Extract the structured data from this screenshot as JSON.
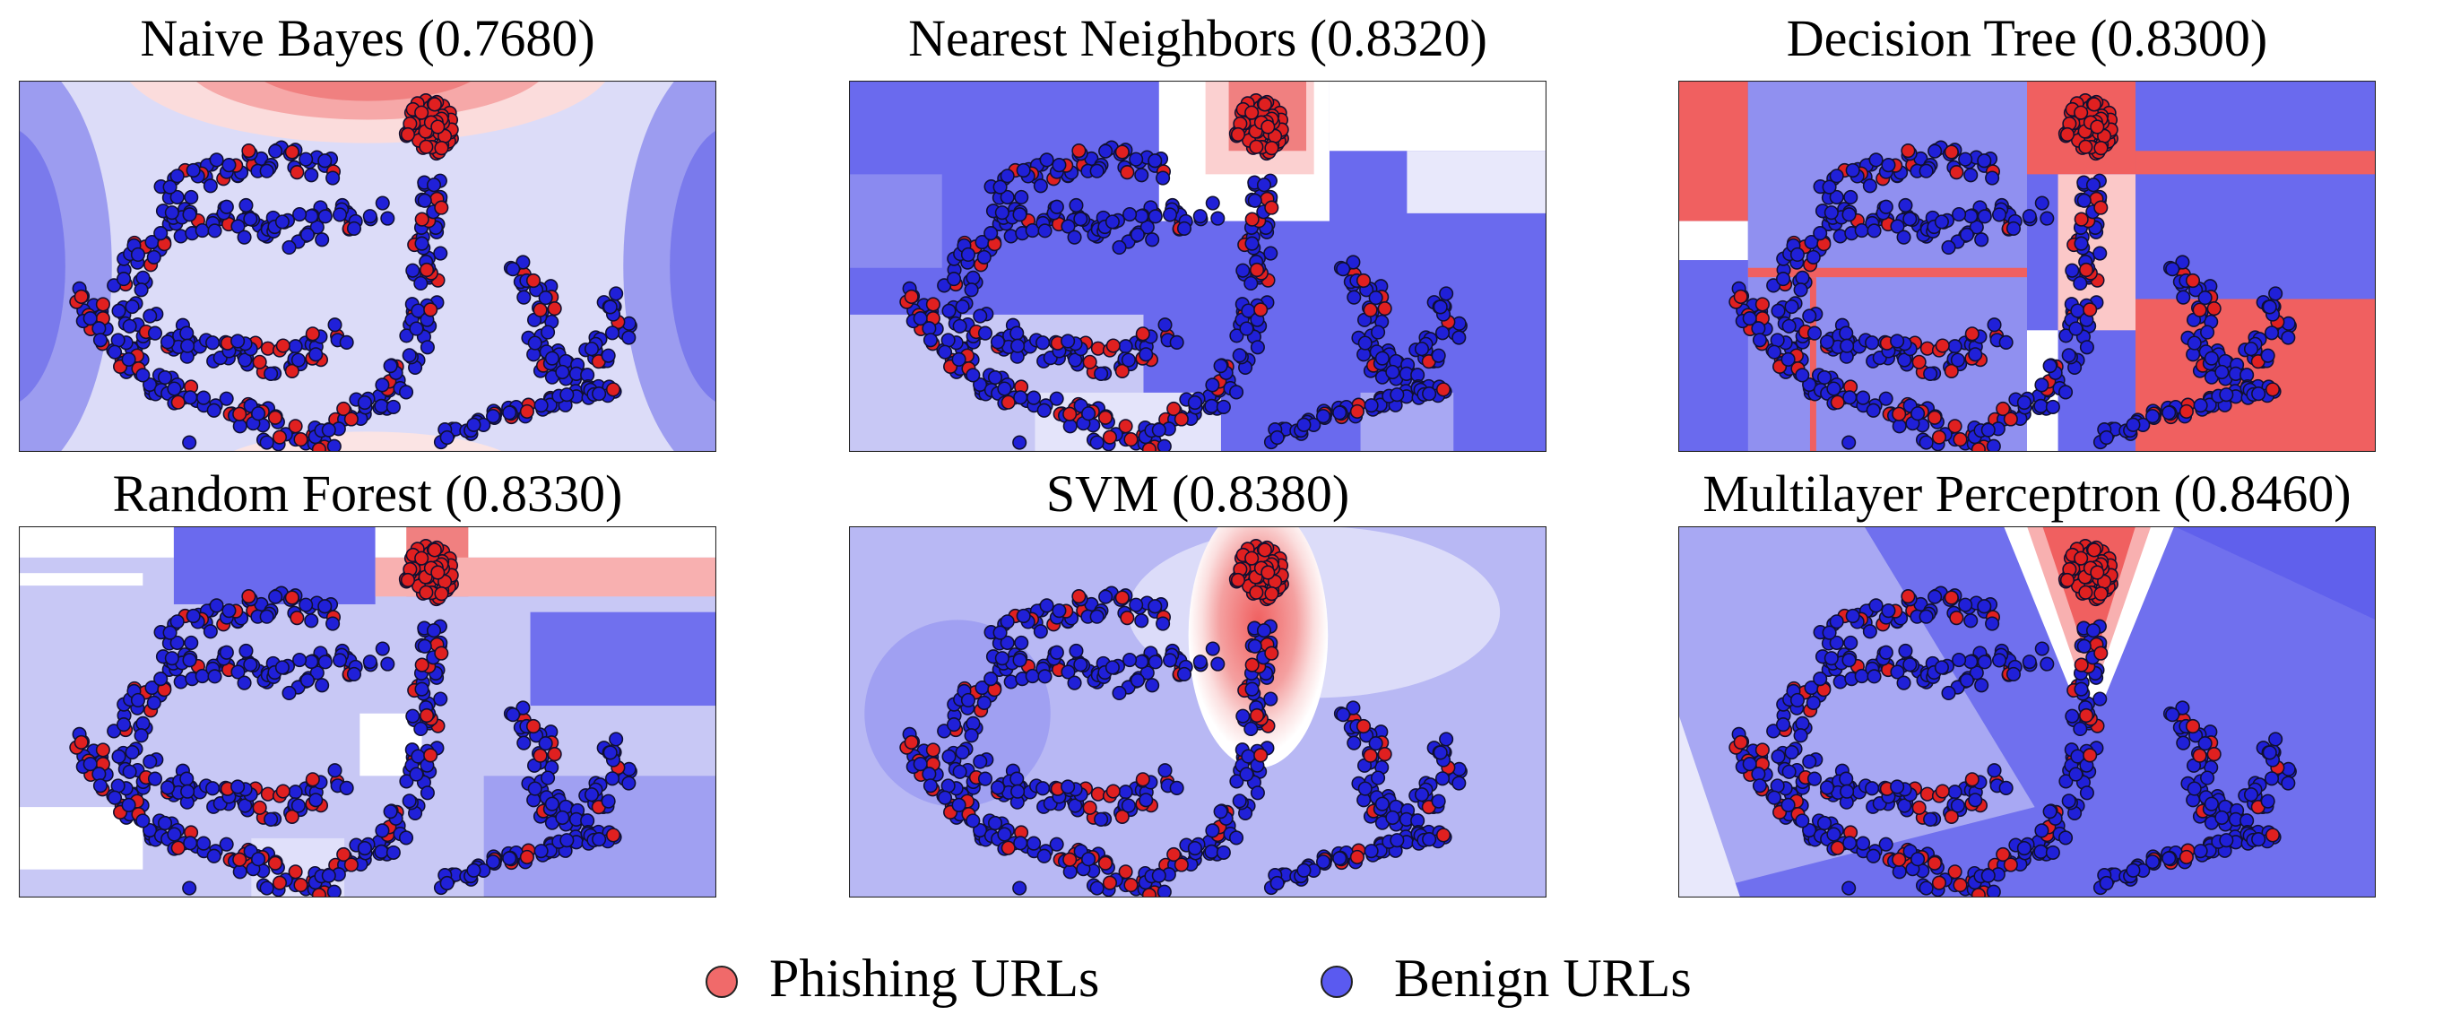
{
  "panels": [
    {
      "title": "Naive Bayes (0.7680)"
    },
    {
      "title": "Nearest Neighbors (0.8320)"
    },
    {
      "title": "Decision Tree (0.8300)"
    },
    {
      "title": "Random Forest (0.8330)"
    },
    {
      "title": "SVM (0.8380)"
    },
    {
      "title": "Multilayer Perceptron (0.8460)"
    }
  ],
  "legend": [
    {
      "label": "Phishing URLs",
      "color": "#f06a6a"
    },
    {
      "label": "Benign URLs",
      "color": "#5a5af0"
    }
  ]
}
